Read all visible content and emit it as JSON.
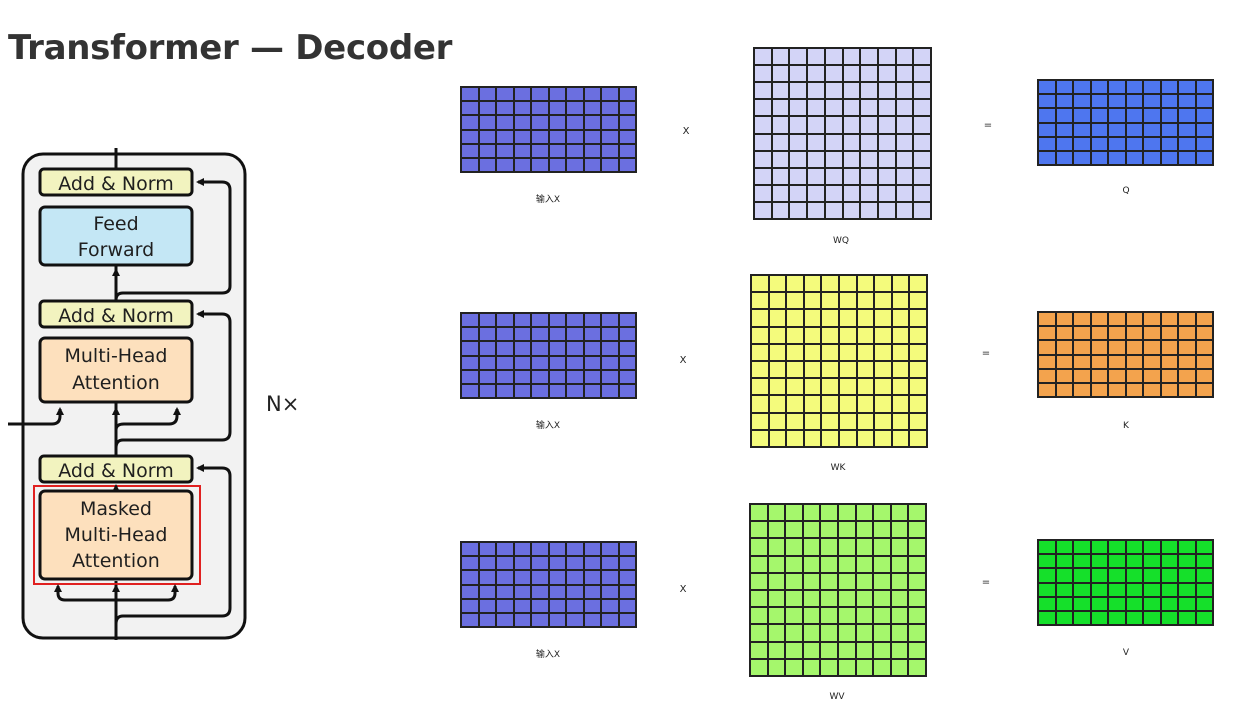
{
  "title": "Transformer — Decoder",
  "decoder": {
    "blocks": {
      "add_norm_top": "Add & Norm",
      "feed_forward_line1": "Feed",
      "feed_forward_line2": "Forward",
      "add_norm_mid": "Add & Norm",
      "mha_line1": "Multi-Head",
      "mha_line2": "Attention",
      "add_norm_bottom": "Add & Norm",
      "masked_line1": "Masked",
      "masked_line2": "Multi-Head",
      "masked_line3": "Attention"
    },
    "repeat_label": "N×",
    "colors": {
      "add_norm": "#f2f3bf",
      "feed_forward": "#c4e7f5",
      "attention": "#fde0bd",
      "panel": "#f2f2f2",
      "highlight": "#e02020"
    }
  },
  "rows": [
    {
      "input_label": "输入X",
      "operator_times": "X",
      "weight_label": "WQ",
      "operator_equals": "=",
      "output_label": "Q",
      "input_color": "#6b6fe0",
      "weight_color": "#d3d4f7",
      "output_color": "#4e76ef"
    },
    {
      "input_label": "输入X",
      "operator_times": "X",
      "weight_label": "WK",
      "operator_equals": "=",
      "output_label": "K",
      "input_color": "#6b6fe0",
      "weight_color": "#f4fb7c",
      "output_color": "#f3a34d"
    },
    {
      "input_label": "输入X",
      "operator_times": "X",
      "weight_label": "WV",
      "operator_equals": "=",
      "output_label": "V",
      "input_color": "#6b6fe0",
      "weight_color": "#a5f76c",
      "output_color": "#15e02a"
    }
  ]
}
